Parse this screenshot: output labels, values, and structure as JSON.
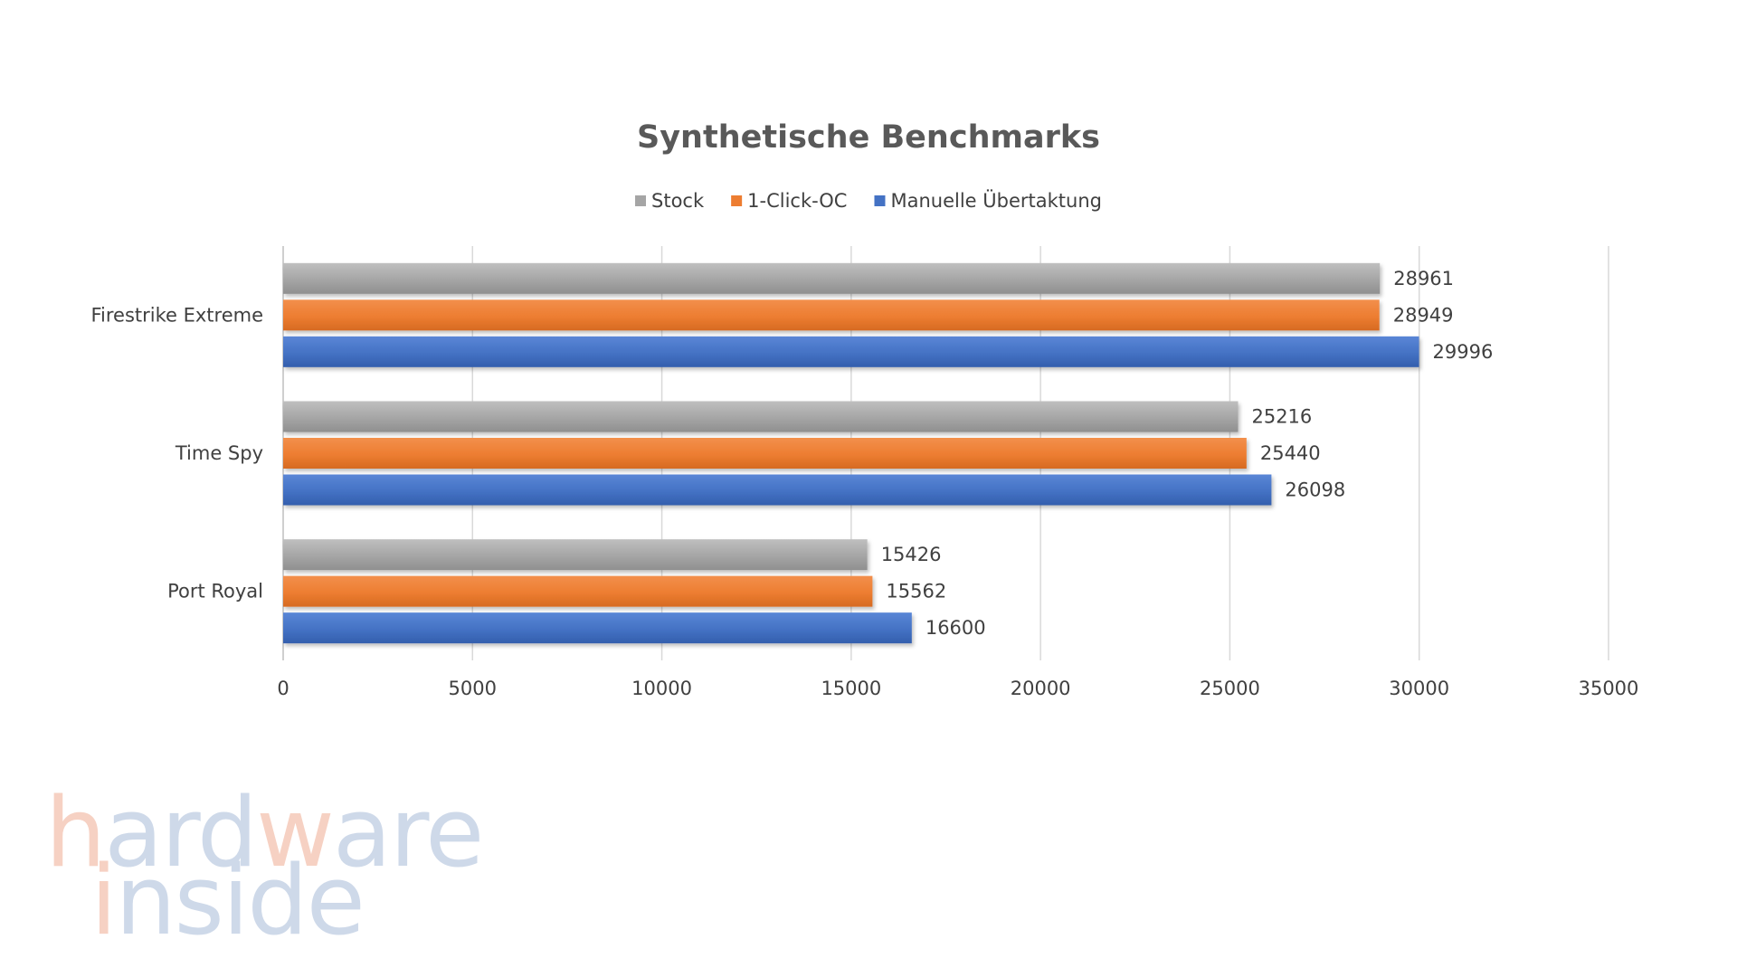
{
  "chart_data": {
    "type": "bar",
    "orientation": "horizontal",
    "title": "Synthetische Benchmarks",
    "categories": [
      "Firestrike Extreme",
      "Time Spy",
      "Port Royal"
    ],
    "series": [
      {
        "name": "Stock",
        "color": "#a5a5a5",
        "values": [
          28961,
          25216,
          15426
        ]
      },
      {
        "name": "1-Click-OC",
        "color": "#ed7d31",
        "values": [
          28949,
          25440,
          15562
        ]
      },
      {
        "name": "Manuelle Übertaktung",
        "color": "#4472c4",
        "values": [
          29996,
          26098,
          16600
        ]
      }
    ],
    "xlim": [
      0,
      35000
    ],
    "xticks": [
      0,
      5000,
      10000,
      15000,
      20000,
      25000,
      30000,
      35000
    ],
    "grid": true,
    "legend_position": "top"
  },
  "watermark": {
    "line1_segments": [
      {
        "text": "h",
        "color": "#f6cfc0"
      },
      {
        "text": "ard",
        "color": "#ccd7e8"
      },
      {
        "text": "w",
        "color": "#f6cfc0"
      },
      {
        "text": "are",
        "color": "#ccd7e8"
      }
    ],
    "line2_segments": [
      {
        "text": "i",
        "color": "#f6cfc0"
      },
      {
        "text": "nside",
        "color": "#ccd7e8"
      }
    ]
  }
}
